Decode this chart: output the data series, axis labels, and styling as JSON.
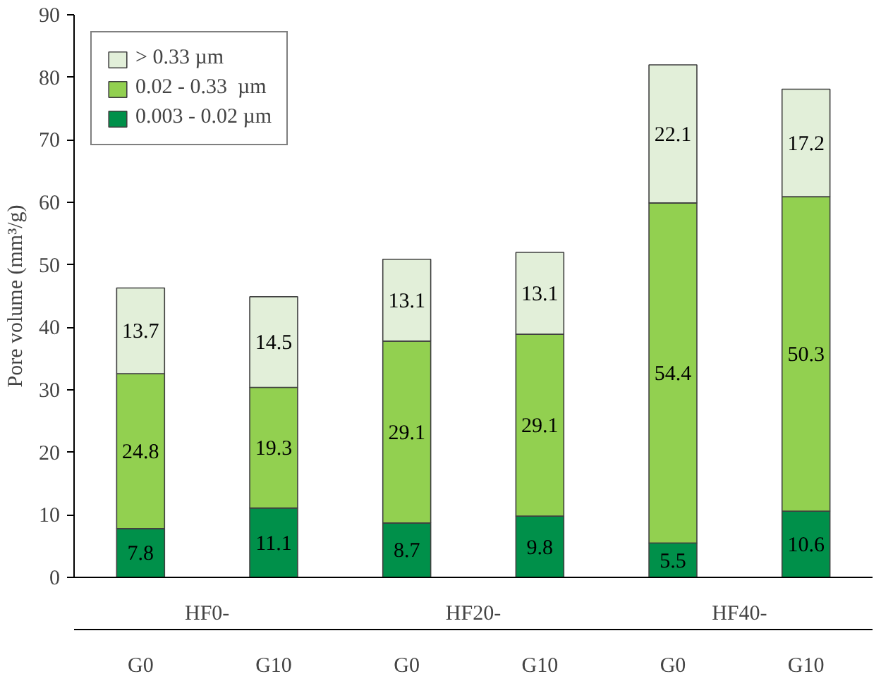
{
  "chart_data": {
    "type": "bar",
    "stacked": true,
    "ylabel": "Pore volume (mm³/g)",
    "categories": [
      "G0",
      "G10",
      "G0",
      "G10",
      "G0",
      "G10"
    ],
    "annotations": [
      "HF0-",
      "HF20-",
      "HF40-"
    ],
    "series": [
      {
        "name": "0.003 - 0.02 µm",
        "color": "#00904a",
        "values": [
          7.8,
          11.1,
          8.7,
          9.8,
          5.5,
          10.6
        ]
      },
      {
        "name": "0.02 - 0.33  µm",
        "color": "#92d050",
        "values": [
          24.8,
          19.3,
          29.1,
          29.1,
          54.4,
          50.3
        ]
      },
      {
        "name": "> 0.33 µm",
        "color": "#e2efd9",
        "values": [
          13.7,
          14.5,
          13.1,
          13.1,
          22.1,
          17.2
        ]
      }
    ],
    "ylim": [
      0,
      90
    ],
    "yticks": [
      0,
      10,
      20,
      30,
      40,
      50,
      60,
      70,
      80,
      90
    ],
    "data_labels": true,
    "legend": "top left",
    "grid": false
  }
}
